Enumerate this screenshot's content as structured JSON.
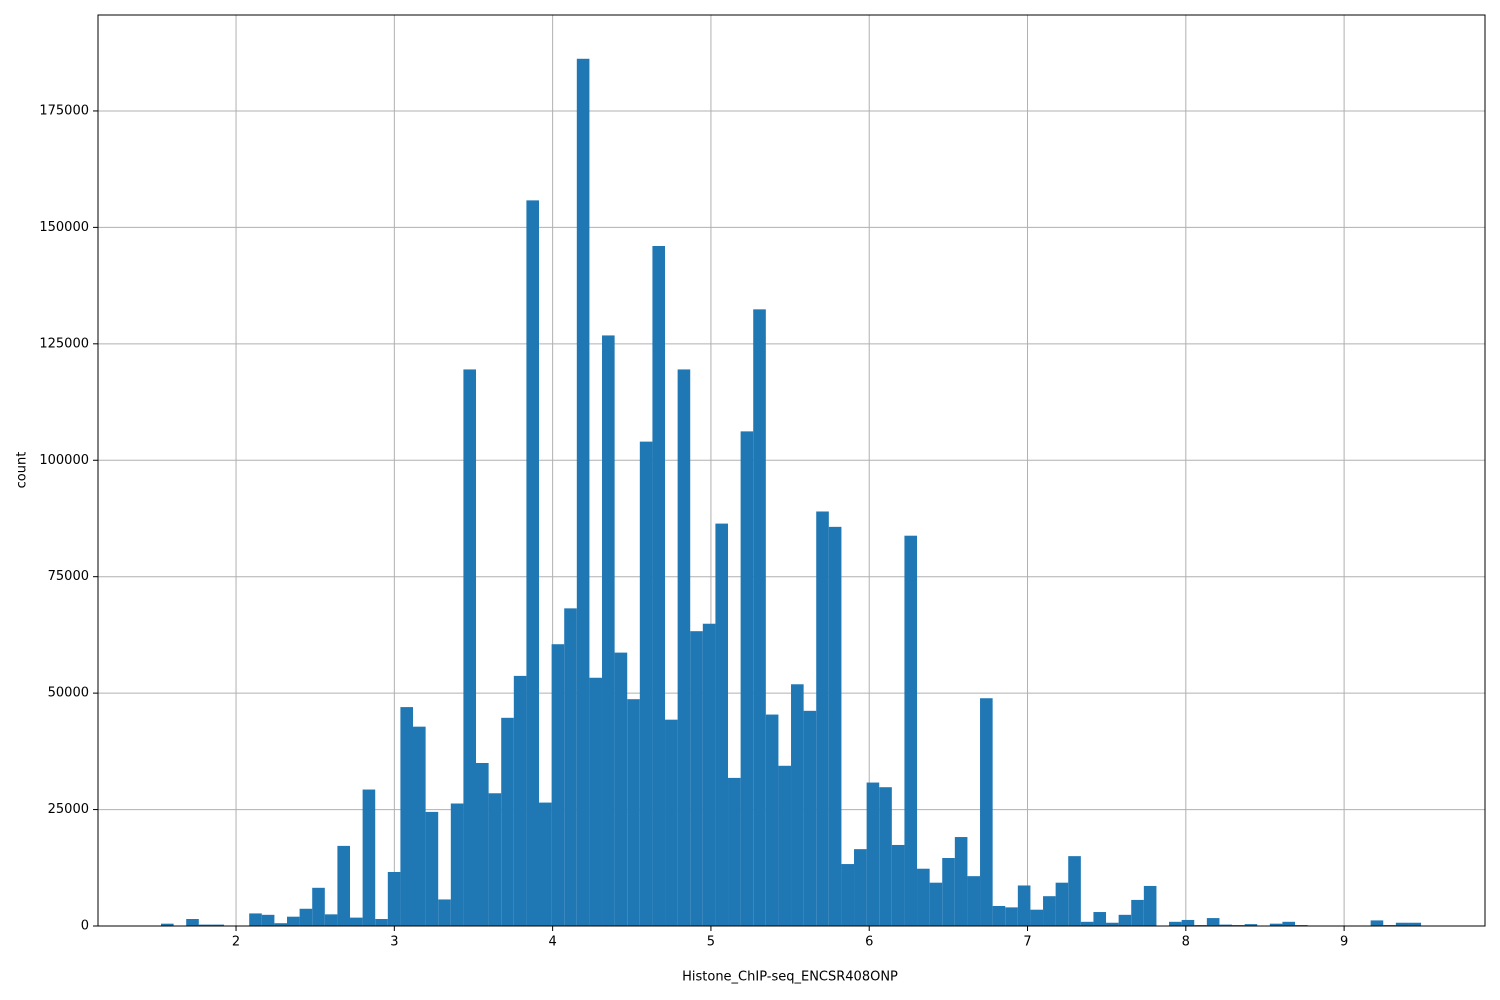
{
  "chart_data": {
    "type": "histogram",
    "xlabel": "Histone_ChIP-seq_ENCSR408ONP",
    "ylabel": "count",
    "color": "#1f77b4",
    "grid": true,
    "bins": [
      1.526,
      1.6056,
      1.6852,
      1.7648,
      1.8444,
      1.924,
      2.0036,
      2.0832,
      2.1628,
      2.2424,
      2.322,
      2.4016,
      2.4812,
      2.5608,
      2.6404,
      2.72,
      2.7996,
      2.8792,
      2.9588,
      3.0384,
      3.118,
      3.1976,
      3.2772,
      3.3568,
      3.4364,
      3.516,
      3.5956,
      3.6752,
      3.7548,
      3.8344,
      3.914,
      3.9936,
      4.0732,
      4.1528,
      4.2324,
      4.312,
      4.3916,
      4.4712,
      4.5508,
      4.6304,
      4.71,
      4.7896,
      4.8692,
      4.9488,
      5.0284,
      5.108,
      5.1876,
      5.2672,
      5.3468,
      5.4264,
      5.506,
      5.5856,
      5.6652,
      5.7448,
      5.8244,
      5.904,
      5.9836,
      6.0632,
      6.1428,
      6.2224,
      6.302,
      6.3816,
      6.4612,
      6.5408,
      6.6204,
      6.7,
      6.7796,
      6.8592,
      6.9388,
      7.0184,
      7.098,
      7.1776,
      7.2572,
      7.3368,
      7.4164,
      7.496,
      7.5756,
      7.6552,
      7.7348,
      7.8144,
      7.894,
      7.9736,
      8.0532,
      8.1328,
      8.2124,
      8.292,
      8.3716,
      8.4512,
      8.5308,
      8.6104,
      8.69,
      8.7696,
      8.8492,
      8.9288,
      9.0084,
      9.088,
      9.1676,
      9.2472,
      9.3268,
      9.4064,
      9.486
    ],
    "values": [
      500,
      0,
      1500,
      300,
      300,
      0,
      0,
      2700,
      2400,
      600,
      2000,
      3700,
      8200,
      2500,
      17200,
      1800,
      29300,
      1500,
      11600,
      47000,
      42800,
      24500,
      5700,
      26300,
      119500,
      35000,
      28500,
      44700,
      53700,
      155800,
      26500,
      60500,
      68200,
      186200,
      53300,
      126800,
      58700,
      48700,
      104000,
      146000,
      44300,
      119500,
      63300,
      64900,
      86400,
      31800,
      106200,
      132400,
      45400,
      34400,
      51900,
      46200,
      89000,
      85700,
      13300,
      16500,
      30800,
      29800,
      17400,
      83800,
      12300,
      9300,
      14600,
      19100,
      10700,
      48900,
      4300,
      4000,
      8700,
      3500,
      6400,
      9300,
      15000,
      900,
      3000,
      700,
      2400,
      5600,
      8600,
      0,
      900,
      1300,
      200,
      1700,
      300,
      200,
      400,
      0,
      500,
      900,
      200,
      0,
      0,
      0,
      0,
      100,
      1200,
      200,
      700,
      700
    ],
    "xlim": [
      1.128,
      9.89
    ],
    "ylim": [
      0,
      195600
    ],
    "xticks": [
      2,
      3,
      4,
      5,
      6,
      7,
      8,
      9
    ],
    "yticks": [
      0,
      25000,
      50000,
      75000,
      100000,
      125000,
      150000,
      175000
    ]
  }
}
